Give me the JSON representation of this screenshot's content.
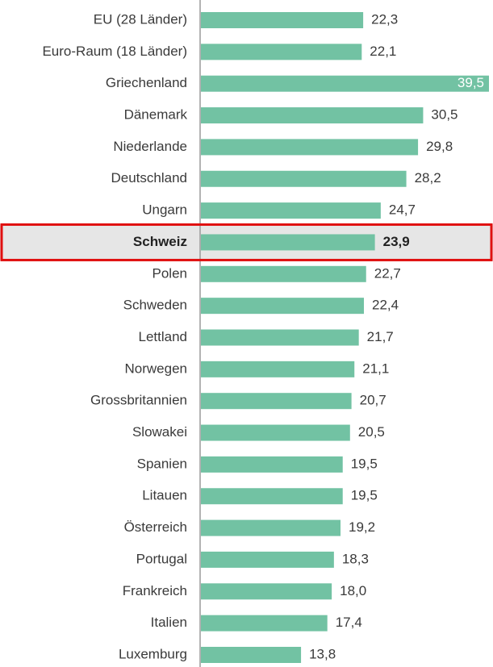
{
  "chart_data": {
    "type": "hbar",
    "categories": [
      "EU (28 Länder)",
      "Euro-Raum (18 Länder)",
      "Griechenland",
      "Dänemark",
      "Niederlande",
      "Deutschland",
      "Ungarn",
      "Schweiz",
      "Polen",
      "Schweden",
      "Lettland",
      "Norwegen",
      "Grossbritannien",
      "Slowakei",
      "Spanien",
      "Litauen",
      "Österreich",
      "Portugal",
      "Frankreich",
      "Italien",
      "Luxemburg"
    ],
    "values": [
      22.3,
      22.1,
      39.5,
      30.5,
      29.8,
      28.2,
      24.7,
      23.9,
      22.7,
      22.4,
      21.7,
      21.1,
      20.7,
      20.5,
      19.5,
      19.5,
      19.2,
      18.3,
      18.0,
      17.4,
      13.8
    ],
    "value_labels": [
      "22,3",
      "22,1",
      "39,5",
      "30,5",
      "29,8",
      "28,2",
      "24,7",
      "23,9",
      "22,7",
      "22,4",
      "21,7",
      "21,1",
      "20,7",
      "20,5",
      "19,5",
      "19,5",
      "19,2",
      "18,3",
      "18,0",
      "17,4",
      "13,8"
    ],
    "color": "#72c2a3",
    "highlight": 7
  }
}
